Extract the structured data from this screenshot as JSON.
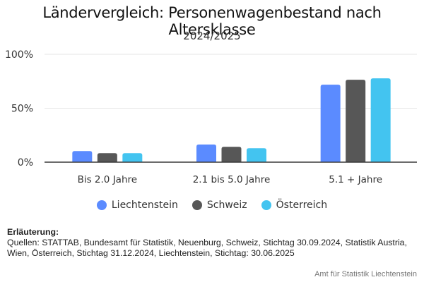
{
  "chart_data": {
    "type": "bar",
    "title": "Ländervergleich: Personenwagenbestand nach Altersklasse",
    "subtitle": "2024/2025",
    "xlabel": "",
    "ylabel": "",
    "categories": [
      "Bis 2.0 Jahre",
      "2.1 bis 5.0 Jahre",
      "5.1 + Jahre"
    ],
    "series": [
      {
        "name": "Liechtenstein",
        "color": "#5B8BFF",
        "values": [
          10.3,
          16.3,
          71.8
        ]
      },
      {
        "name": "Schweiz",
        "color": "#575757",
        "values": [
          8.3,
          14.2,
          76.4
        ]
      },
      {
        "name": "Österreich",
        "color": "#43C4F0",
        "values": [
          8.3,
          12.9,
          77.7
        ]
      }
    ],
    "ylim": [
      0,
      100
    ],
    "yticks": [
      0,
      50,
      100
    ],
    "ytick_labels": [
      "0%",
      "50%",
      "100%"
    ],
    "grid": true,
    "legend_position": "bottom-center"
  },
  "notes": {
    "heading": "Erläuterung:",
    "text": "Quellen: STATTAB, Bundesamt für Statistik, Neuenburg, Schweiz, Stichtag 30.09.2024, Statistik Austria, Wien, Österreich, Stichtag 31.12.2024, Liechtenstein, Stichtag: 30.06.2025"
  },
  "credit": "Amt für Statistik Liechtenstein"
}
